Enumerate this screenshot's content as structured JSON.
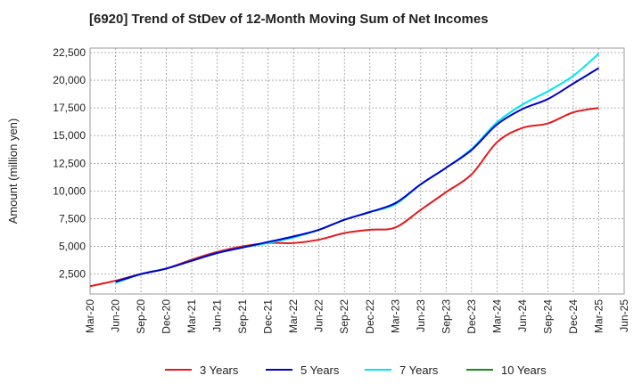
{
  "chart_data": {
    "type": "line",
    "title": "[6920]  Trend of StDev of 12-Month Moving Sum of Net Incomes",
    "xlabel": "",
    "ylabel": "Amount (million yen)",
    "ylim": [
      700,
      22900
    ],
    "y_ticks": [
      2500,
      5000,
      7500,
      10000,
      12500,
      15000,
      17500,
      20000,
      22500
    ],
    "y_tick_labels": [
      "2,500",
      "5,000",
      "7,500",
      "10,000",
      "12,500",
      "15,000",
      "17,500",
      "20,000",
      "22,500"
    ],
    "x_tick_labels": [
      "Mar-20",
      "Jun-20",
      "Sep-20",
      "Dec-20",
      "Mar-21",
      "Jun-21",
      "Sep-21",
      "Dec-21",
      "Mar-22",
      "Jun-22",
      "Sep-22",
      "Dec-22",
      "Mar-23",
      "Jun-23",
      "Sep-23",
      "Dec-23",
      "Mar-24",
      "Jun-24",
      "Sep-24",
      "Dec-24",
      "Mar-25",
      "Jun-25"
    ],
    "grid": true,
    "legend_position": "bottom",
    "series": [
      {
        "name": "3 Years",
        "color": "#e31a1c",
        "x": [
          "Mar-20",
          "Jun-20",
          "Sep-20",
          "Dec-20",
          "Mar-21",
          "Jun-21",
          "Sep-21",
          "Dec-21",
          "Mar-22",
          "Jun-22",
          "Sep-22",
          "Dec-22",
          "Mar-23",
          "Jun-23",
          "Sep-23",
          "Dec-23",
          "Mar-24",
          "Jun-24",
          "Sep-24",
          "Dec-24",
          "Mar-25"
        ],
        "values": [
          1400,
          1900,
          2500,
          3000,
          3800,
          4500,
          5000,
          5300,
          5300,
          5600,
          6200,
          6500,
          6700,
          8300,
          9900,
          11500,
          14400,
          15700,
          16100,
          17100,
          17500
        ]
      },
      {
        "name": "5 Years",
        "color": "#0000cc",
        "x": [
          "Jun-20",
          "Sep-20",
          "Dec-20",
          "Mar-21",
          "Jun-21",
          "Sep-21",
          "Dec-21",
          "Mar-22",
          "Jun-22",
          "Sep-22",
          "Dec-22",
          "Mar-23",
          "Jun-23",
          "Sep-23",
          "Dec-23",
          "Mar-24",
          "Jun-24",
          "Sep-24",
          "Dec-24",
          "Mar-25"
        ],
        "values": [
          1800,
          2500,
          3000,
          3700,
          4400,
          4900,
          5400,
          5900,
          6500,
          7400,
          8100,
          8900,
          10600,
          12100,
          13700,
          16000,
          17400,
          18300,
          19700,
          21100
        ]
      },
      {
        "name": "7 Years",
        "color": "#00e5ee",
        "x": [
          "Jun-20",
          "Sep-20",
          "Dec-20",
          "Mar-21",
          "Jun-21",
          "Sep-21",
          "Dec-21",
          "Mar-22",
          "Jun-22",
          "Sep-22",
          "Dec-22",
          "Mar-23",
          "Jun-23",
          "Sep-23",
          "Dec-23",
          "Mar-24",
          "Jun-24",
          "Sep-24",
          "Dec-24",
          "Mar-25"
        ],
        "values": [
          1700,
          2500,
          3000,
          3700,
          4400,
          4900,
          5300,
          5800,
          6500,
          7400,
          8100,
          8800,
          10600,
          12100,
          13800,
          16200,
          17800,
          19000,
          20400,
          22400
        ]
      },
      {
        "name": "10 Years",
        "color": "#1a8c1a",
        "x": [],
        "values": []
      }
    ]
  }
}
